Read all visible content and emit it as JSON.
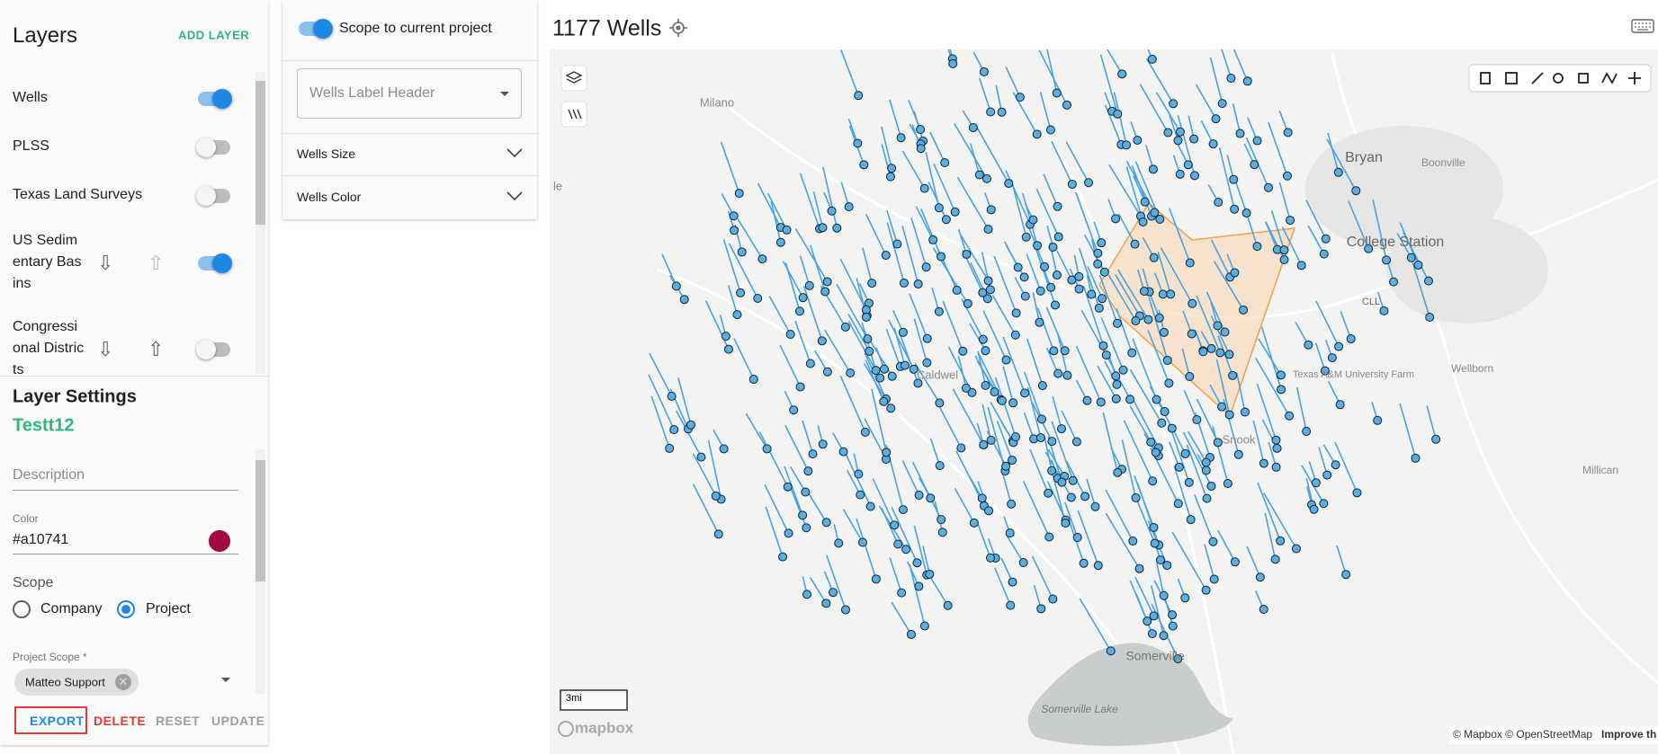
{
  "layers_panel": {
    "title": "Layers",
    "add_button": "ADD LAYER",
    "layers": [
      {
        "name": "Wells",
        "enabled": true
      },
      {
        "name": "PLSS",
        "enabled": false
      },
      {
        "name": "Texas Land Surveys",
        "enabled": false
      },
      {
        "name": "US Sedimentary Basins",
        "enabled": true
      },
      {
        "name": "Congressional Districts",
        "enabled": false
      }
    ]
  },
  "layer_settings": {
    "title": "Layer Settings",
    "layer_name": "Testt12",
    "description_placeholder": "Description",
    "color_label": "Color",
    "color_value": "#a10741",
    "scope_label": "Scope",
    "scope_options": [
      "Company",
      "Project"
    ],
    "selected_scope": "Project",
    "project_scope_label": "Project Scope *",
    "project_scope_chip": "Matteo Support",
    "buttons": [
      "EXPORT",
      "DELETE",
      "RESET",
      "UPDATE"
    ]
  },
  "filters_panel": {
    "scope_toggle": "Scope to current project",
    "scope_enabled": true,
    "label_header_placeholder": "Wells Label Header",
    "sections": [
      "Wells Size",
      "Wells Color"
    ]
  },
  "map": {
    "title": "1177 Wells",
    "places": [
      "Milano",
      "Bryan",
      "Boonville",
      "College Station",
      "CLL",
      "Wellborn",
      "Millican",
      "Snook",
      "Caldwel",
      "Texas A&M University Farm",
      "Somerville",
      "Somerville Lake",
      "le"
    ],
    "scale": "3mi",
    "logo": "mapbox",
    "attribution": "© Mapbox © OpenStreetMap",
    "improve": "Improve th"
  }
}
